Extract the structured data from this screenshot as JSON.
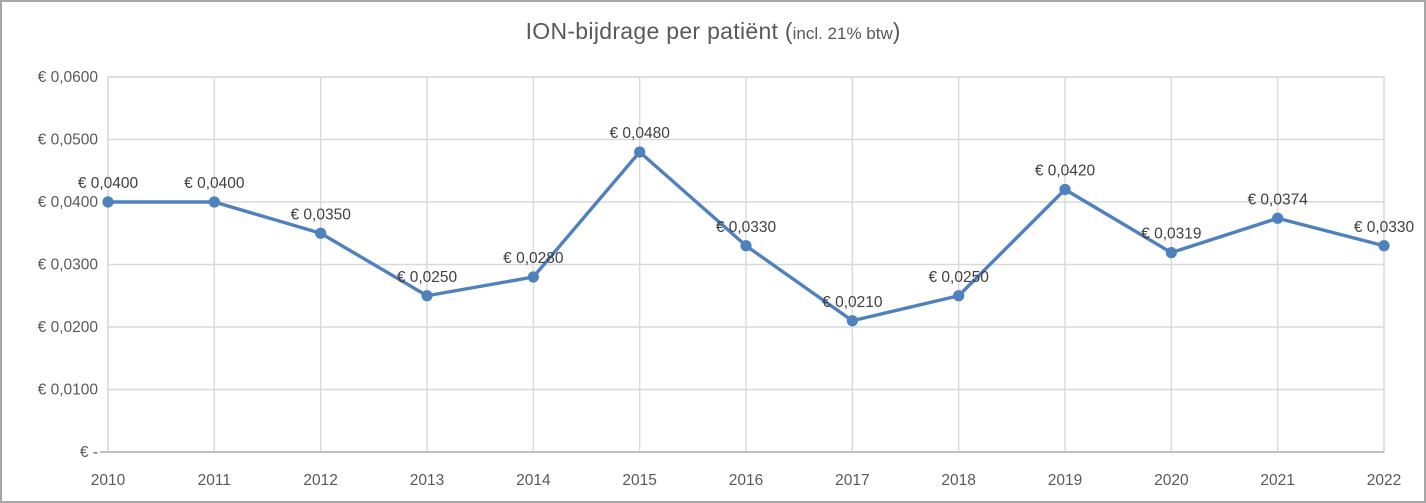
{
  "window": {
    "kind": "spreadsheet-embedded-line-chart"
  },
  "chart_data": {
    "type": "line",
    "title": "ION-bijdrage per patiënt ",
    "title_suffix_open": "(",
    "title_suffix": "incl. 21% btw",
    "title_suffix_close": ")",
    "categories": [
      "2010",
      "2011",
      "2012",
      "2013",
      "2014",
      "2015",
      "2016",
      "2017",
      "2018",
      "2019",
      "2020",
      "2021",
      "2022"
    ],
    "values": [
      0.04,
      0.04,
      0.035,
      0.025,
      0.028,
      0.048,
      0.033,
      0.021,
      0.025,
      0.042,
      0.0319,
      0.0374,
      0.033
    ],
    "point_labels": [
      "€ 0,0400",
      "€ 0,0400",
      "€ 0,0350",
      "€ 0,0250",
      "€ 0,0280",
      "€ 0,0480",
      "€ 0,0330",
      "€ 0,0210",
      "€ 0,0250",
      "€ 0,0420",
      "€ 0,0319",
      "€ 0,0374",
      "€ 0,0330"
    ],
    "ytick_labels": [
      "€ 0,0600",
      "€ 0,0500",
      "€ 0,0400",
      "€ 0,0300",
      "€ 0,0200",
      "€ 0,0100",
      "€ -"
    ],
    "ytick_values": [
      0.06,
      0.05,
      0.04,
      0.03,
      0.02,
      0.01,
      0
    ],
    "ylim": [
      0,
      0.06
    ],
    "xlabel": "",
    "ylabel": "",
    "grid": true,
    "legend": "none",
    "marker": "circle",
    "colors": {
      "line": "#4F81BD",
      "marker": "#4F81BD",
      "grid": "#D9D9D9",
      "plot_border": "#D9D9D9",
      "axis_line": "#BFBFBF",
      "axis_text": "#595959",
      "data_label": "#404040",
      "title": "#595959",
      "frame_border": "#A6A6A6"
    }
  }
}
